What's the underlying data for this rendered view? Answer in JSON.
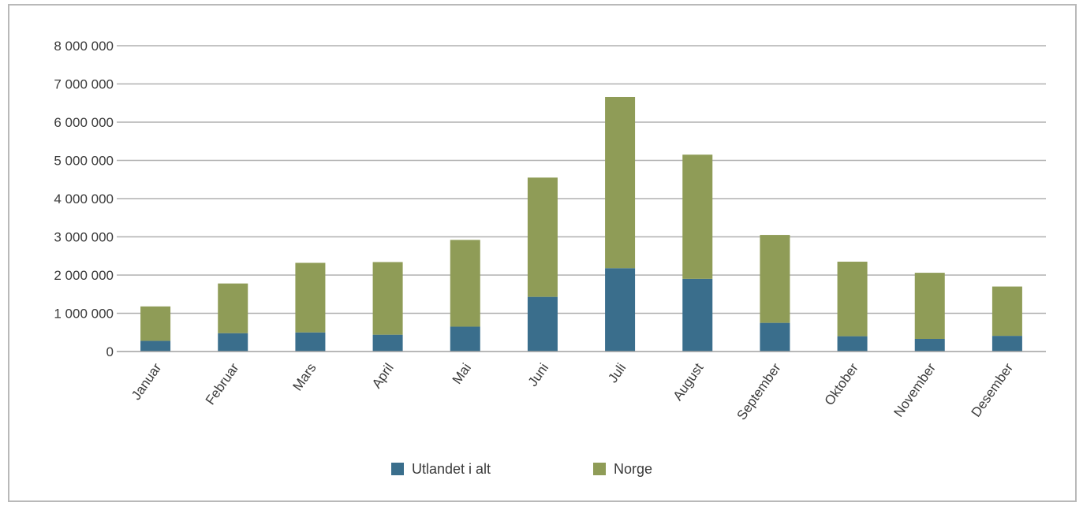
{
  "chart_data": {
    "type": "bar",
    "stacked": true,
    "title": "",
    "xlabel": "",
    "ylabel": "",
    "ylim": [
      0,
      8000000
    ],
    "yticks": [
      0,
      1000000,
      2000000,
      3000000,
      4000000,
      5000000,
      6000000,
      7000000,
      8000000
    ],
    "ytick_labels": [
      "0",
      "1 000 000",
      "2 000 000",
      "3 000 000",
      "4 000 000",
      "5 000 000",
      "6 000 000",
      "7 000 000",
      "8 000 000"
    ],
    "grid": "horizontal",
    "legend_position": "bottom",
    "categories": [
      "Januar",
      "Februar",
      "Mars",
      "April",
      "Mai",
      "Juni",
      "Juli",
      "August",
      "September",
      "Oktober",
      "November",
      "Desember"
    ],
    "series": [
      {
        "name": "Utlandet i alt",
        "color": "#3a6e8c",
        "values": [
          280000,
          480000,
          500000,
          440000,
          650000,
          1430000,
          2180000,
          1900000,
          750000,
          400000,
          330000,
          410000
        ]
      },
      {
        "name": "Norge",
        "color": "#8f9c57",
        "values": [
          900000,
          1300000,
          1820000,
          1900000,
          2270000,
          3120000,
          4480000,
          3250000,
          2300000,
          1950000,
          1730000,
          1290000
        ]
      }
    ]
  }
}
